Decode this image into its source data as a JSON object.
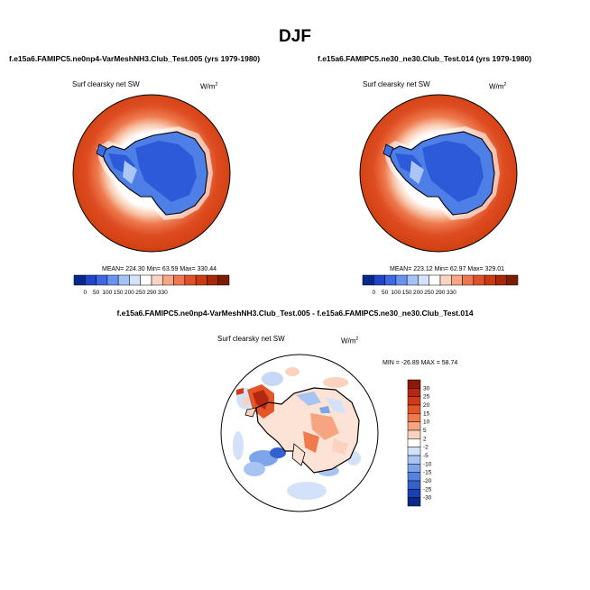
{
  "page": {
    "season": "DJF",
    "difference_title": "f.e15a6.FAMIPC5.ne0np4-VarMeshNH3.Club_Test.005 - f.e15a6.FAMIPC5.ne30_ne30.Club_Test.014"
  },
  "chart_data": [
    {
      "type": "heatmap",
      "projection": "south-polar-stereographic",
      "title": "f.e15a6.FAMIPC5.ne0np4-VarMeshNH3.Club_Test.005 (yrs 1979-1980)",
      "variable": "Surf clearsky net SW",
      "units": "W/m",
      "units_sup": "2",
      "stats": "MEAN= 224.30  Min=  63.59  Max= 330.44",
      "colorbar_labels": [
        "0",
        "50",
        "100",
        "150",
        "200",
        "250",
        "290",
        "330"
      ],
      "colorbar_colors": [
        "#08298c",
        "#1f44c9",
        "#3e68e3",
        "#6a93ef",
        "#a3c2f6",
        "#d4e3fa",
        "#ffffff",
        "#fbd4c3",
        "#f5a684",
        "#ee7650",
        "#e0512a",
        "#cc3a12",
        "#a72707",
        "#7a1c06"
      ]
    },
    {
      "type": "heatmap",
      "projection": "south-polar-stereographic",
      "title": "f.e15a6.FAMIPC5.ne30_ne30.Club_Test.014 (yrs 1979-1980)",
      "variable": "Surf clearsky net SW",
      "units": "W/m",
      "units_sup": "2",
      "stats": "MEAN= 223.12  Min=  62.97  Max= 329.01",
      "colorbar_labels": [
        "0",
        "50",
        "100",
        "150",
        "200",
        "250",
        "290",
        "330"
      ],
      "colorbar_colors": [
        "#08298c",
        "#1f44c9",
        "#3e68e3",
        "#6a93ef",
        "#a3c2f6",
        "#d4e3fa",
        "#ffffff",
        "#fbd4c3",
        "#f5a684",
        "#ee7650",
        "#e0512a",
        "#cc3a12",
        "#a72707",
        "#7a1c06"
      ]
    },
    {
      "type": "heatmap",
      "projection": "south-polar-stereographic",
      "title": "f.e15a6.FAMIPC5.ne0np4-VarMeshNH3.Club_Test.005 - f.e15a6.FAMIPC5.ne30_ne30.Club_Test.014",
      "variable": "Surf clearsky net SW",
      "units": "W/m",
      "units_sup": "2",
      "stats": "MIN = -26.89 MAX =  58.74",
      "colorbar_labels": [
        "30",
        "25",
        "20",
        "15",
        "10",
        "5",
        "2",
        "-2",
        "-5",
        "-10",
        "-15",
        "-20",
        "-25",
        "-30"
      ],
      "colorbar_colors": [
        "#8c1a0a",
        "#b42810",
        "#d03a18",
        "#e45528",
        "#f07a4c",
        "#f7a581",
        "#fbd2bd",
        "#ffffff",
        "#d4e2f8",
        "#a9c4f2",
        "#7ea5ea",
        "#5583e0",
        "#3560cf",
        "#1b3fb5",
        "#0a2888"
      ]
    }
  ]
}
